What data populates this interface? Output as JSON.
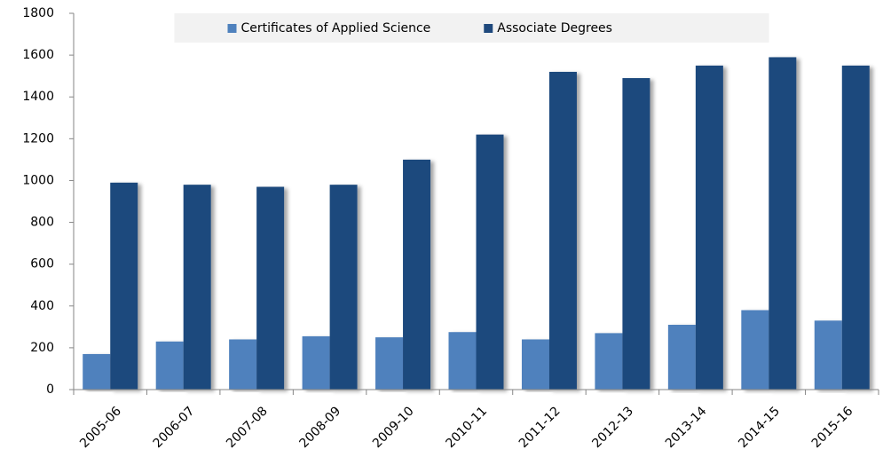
{
  "chart_data": {
    "type": "bar",
    "categories": [
      "2005-06",
      "2006-07",
      "2007-08",
      "2008-09",
      "2009-10",
      "2010-11",
      "2011-12",
      "2012-13",
      "2013-14",
      "2014-15",
      "2015-16"
    ],
    "series": [
      {
        "name": "Certificates of Applied Science",
        "color": "#4f81bd",
        "values": [
          170,
          230,
          240,
          255,
          250,
          275,
          240,
          270,
          310,
          380,
          330
        ]
      },
      {
        "name": "Associate Degrees",
        "color": "#1f497d",
        "values": [
          990,
          980,
          970,
          980,
          1100,
          1220,
          1520,
          1490,
          1550,
          1590,
          1550
        ]
      }
    ],
    "ylim": [
      0,
      1800
    ],
    "yticks": [
      0,
      200,
      400,
      600,
      800,
      1000,
      1200,
      1400,
      1600,
      1800
    ],
    "grid": false,
    "legend": "top"
  }
}
